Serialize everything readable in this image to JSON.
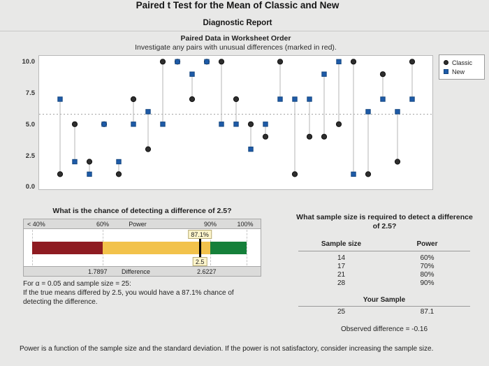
{
  "report": {
    "title": "Paired t Test for the Mean of Classic and New",
    "subtitle": "Diagnostic Report",
    "footnote": "Power is a function of the sample size and the standard deviation. If the power is not satisfactory, consider increasing the sample size."
  },
  "chart_data": [
    {
      "type": "scatter",
      "title": "Paired Data in Worksheet Order",
      "subtitle": "Investigate any pairs with unusual differences (marked in red).",
      "xlabel": "",
      "ylabel": "",
      "x": [
        1,
        2,
        3,
        4,
        5,
        6,
        7,
        8,
        9,
        10,
        11,
        12,
        13,
        14,
        15,
        16,
        17,
        18,
        19,
        20,
        21,
        22,
        23,
        24,
        25
      ],
      "series": [
        {
          "name": "Classic",
          "marker": "circle",
          "color": "#2e2e2e",
          "edge_color": "#111111",
          "values": [
            1,
            5,
            2,
            5,
            1,
            7,
            3,
            10,
            10,
            7,
            10,
            10,
            7,
            5,
            4,
            10,
            1,
            4,
            4,
            5,
            10,
            1,
            9,
            2,
            10
          ]
        },
        {
          "name": "New",
          "marker": "square",
          "color": "#1e5ba8",
          "edge_color": "#14467f",
          "values": [
            7,
            2,
            1,
            5,
            2,
            5,
            6,
            5,
            10,
            9,
            10,
            5,
            5,
            3,
            5,
            7,
            7,
            7,
            9,
            10,
            1,
            6,
            7,
            6,
            7
          ]
        }
      ],
      "yticks": [
        {
          "label": "10.0",
          "value": 10
        },
        {
          "label": "7.5",
          "value": 7.5
        },
        {
          "label": "5.0",
          "value": 5
        },
        {
          "label": "2.5",
          "value": 2.5
        },
        {
          "label": "0.0",
          "value": 0
        }
      ],
      "ylim": [
        0,
        10
      ],
      "reference_line": 5.8,
      "connector_color": "#b5b5b5",
      "grid": false,
      "legend_position": "outside-top-right"
    },
    {
      "type": "power-bar",
      "title": "What is the chance of detecting a difference of 2.5?",
      "scale_labels": [
        "< 40%",
        "60%",
        "Power",
        "90%",
        "100%"
      ],
      "segments": [
        {
          "name": "low-power",
          "color": "#8e1b21",
          "from": 40,
          "to": 60
        },
        {
          "name": "medium-power",
          "color": "#f2c24b",
          "from": 60,
          "to": 90
        },
        {
          "name": "high-power",
          "color": "#15803a",
          "from": 90,
          "to": 100
        }
      ],
      "marker": {
        "power_value": 87.1,
        "power_label": "87.1%",
        "difference_label": "2.5"
      },
      "footer": {
        "left": "1.7897",
        "center": "Difference",
        "right": "2.6227"
      },
      "notes": [
        "For α = 0.05 and sample size = 25:",
        "If the true means differed by 2.5, you would have a 87.1% chance of detecting the difference."
      ]
    },
    {
      "type": "table",
      "title": "What sample size is required to detect a difference of 2.5?",
      "headers": [
        "Sample size",
        "Power"
      ],
      "rows": [
        [
          "14",
          "60%"
        ],
        [
          "17",
          "70%"
        ],
        [
          "21",
          "80%"
        ],
        [
          "28",
          "90%"
        ]
      ],
      "your_sample_header": "Your Sample",
      "your_sample_row": [
        "25",
        "87.1"
      ],
      "note": "Observed difference = -0.16"
    }
  ]
}
